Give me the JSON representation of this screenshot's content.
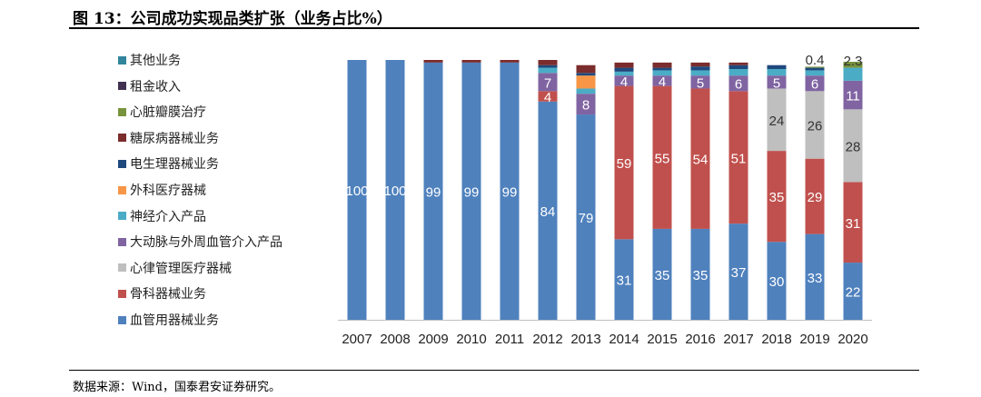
{
  "header": {
    "title": "图 13：公司成功实现品类扩张（业务占比%）"
  },
  "footer": {
    "source": "数据来源：Wind，国泰君安证券研究。"
  },
  "chart_data": {
    "type": "bar",
    "stacked": true,
    "categories": [
      "2007",
      "2008",
      "2009",
      "2010",
      "2011",
      "2012",
      "2013",
      "2014",
      "2015",
      "2016",
      "2017",
      "2018",
      "2019",
      "2020"
    ],
    "ylim": [
      0,
      100
    ],
    "grid": false,
    "legend_position": "left",
    "series": [
      {
        "name": "血管用器械业务",
        "color": "#4F81BD",
        "values": [
          100,
          100,
          99,
          99,
          99,
          84,
          79,
          31,
          35,
          35,
          37,
          30,
          33,
          22
        ],
        "labels": [
          "100",
          "100",
          "99",
          "99",
          "99",
          "84",
          "79",
          "31",
          "35",
          "35",
          "37",
          "30",
          "33",
          "22"
        ]
      },
      {
        "name": "骨科器械业务",
        "color": "#C0504D",
        "values": [
          0,
          0,
          0,
          0,
          0,
          4,
          0,
          59,
          55,
          54,
          51,
          35,
          29,
          31
        ],
        "labels": [
          null,
          null,
          null,
          null,
          null,
          "4",
          null,
          "59",
          "55",
          "54",
          "51",
          "35",
          "29",
          "31"
        ]
      },
      {
        "name": "心律管理医疗器械",
        "color": "#BFBFBF",
        "values": [
          0,
          0,
          0,
          0,
          0,
          0,
          0,
          0,
          0,
          0,
          0,
          24,
          26,
          28
        ],
        "labels": [
          null,
          null,
          null,
          null,
          null,
          null,
          null,
          null,
          null,
          null,
          null,
          "24",
          "26",
          "28"
        ]
      },
      {
        "name": "大动脉与外周血管介入产品",
        "color": "#8064A2",
        "values": [
          0,
          0,
          0,
          0,
          0,
          7,
          8,
          4,
          4,
          5,
          6,
          5,
          6,
          11
        ],
        "labels": [
          null,
          null,
          null,
          null,
          null,
          "7",
          "8",
          "4",
          "4",
          "5",
          "6",
          "5",
          "6",
          "11"
        ]
      },
      {
        "name": "神经介入产品",
        "color": "#4BACC6",
        "values": [
          0,
          0,
          0,
          0,
          0,
          2,
          2,
          1.5,
          2,
          2,
          2.5,
          2.5,
          2,
          5
        ],
        "labels": [
          null,
          null,
          null,
          null,
          null,
          null,
          null,
          null,
          null,
          null,
          null,
          null,
          null,
          null
        ]
      },
      {
        "name": "外科医疗器械",
        "color": "#F79646",
        "values": [
          0,
          0,
          0,
          0,
          0,
          0,
          5,
          0,
          0,
          0,
          0,
          0,
          0,
          0
        ],
        "labels": [
          null,
          null,
          null,
          null,
          null,
          null,
          null,
          null,
          null,
          null,
          null,
          null,
          null,
          null
        ]
      },
      {
        "name": "电生理器械业务",
        "color": "#1F497D",
        "values": [
          0,
          0,
          0,
          0,
          0,
          1,
          1,
          1.5,
          1,
          1.5,
          1.5,
          1.5,
          1,
          0
        ],
        "labels": [
          null,
          null,
          null,
          null,
          null,
          null,
          null,
          null,
          null,
          null,
          null,
          null,
          null,
          null
        ]
      },
      {
        "name": "糖尿病器械业务",
        "color": "#7B2C2C",
        "values": [
          0,
          0,
          1,
          1,
          1,
          2,
          3,
          2,
          2,
          1.5,
          1,
          0,
          0,
          0
        ],
        "labels": [
          null,
          null,
          null,
          null,
          null,
          null,
          null,
          null,
          null,
          null,
          null,
          null,
          null,
          null
        ]
      },
      {
        "name": "心脏瓣膜治疗",
        "color": "#77933C",
        "values": [
          0,
          0,
          0,
          0,
          0,
          0,
          0,
          0,
          0,
          0,
          0,
          0,
          0.4,
          2.3
        ],
        "labels": [
          null,
          null,
          null,
          null,
          null,
          null,
          null,
          null,
          null,
          null,
          null,
          null,
          "0.4",
          "2.3"
        ]
      },
      {
        "name": "租金收入",
        "color": "#403151",
        "values": [
          0,
          0,
          0,
          0,
          0,
          0,
          0,
          0,
          0,
          0,
          0,
          0,
          0,
          0
        ],
        "labels": [
          null,
          null,
          null,
          null,
          null,
          null,
          null,
          null,
          null,
          null,
          null,
          null,
          null,
          null
        ]
      },
      {
        "name": "其他业务",
        "color": "#31859C",
        "values": [
          0,
          0,
          0,
          0,
          0,
          0,
          0,
          0,
          0,
          0,
          0,
          0,
          0,
          0
        ],
        "labels": [
          null,
          null,
          null,
          null,
          null,
          null,
          null,
          null,
          null,
          null,
          null,
          null,
          null,
          null
        ]
      }
    ],
    "legend_order": [
      "其他业务",
      "租金收入",
      "心脏瓣膜治疗",
      "糖尿病器械业务",
      "电生理器械业务",
      "外科医疗器械",
      "神经介入产品",
      "大动脉与外周血管介入产品",
      "心律管理医疗器械",
      "骨科器械业务",
      "血管用器械业务"
    ]
  }
}
